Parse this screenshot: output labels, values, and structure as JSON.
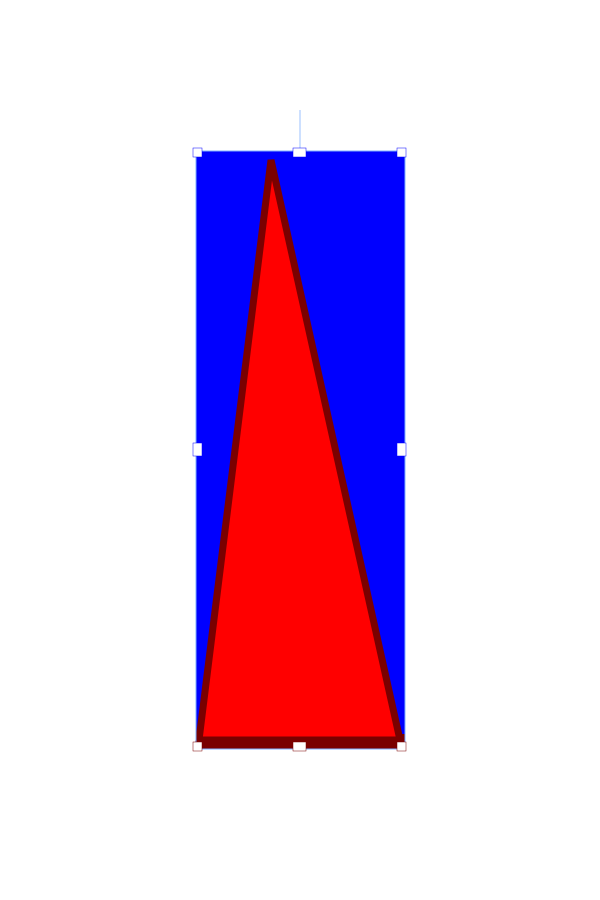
{
  "canvas": {
    "background_color": "#ffffff"
  },
  "selection": {
    "handle_color": "#ffffff",
    "outline_color": "#7fb0ff",
    "rotation_handle_color": "#bcd6ff"
  },
  "shape": {
    "background_color": "#0000ff",
    "triangle_fill": "#ff0000",
    "triangle_stroke": "#7a0000"
  }
}
